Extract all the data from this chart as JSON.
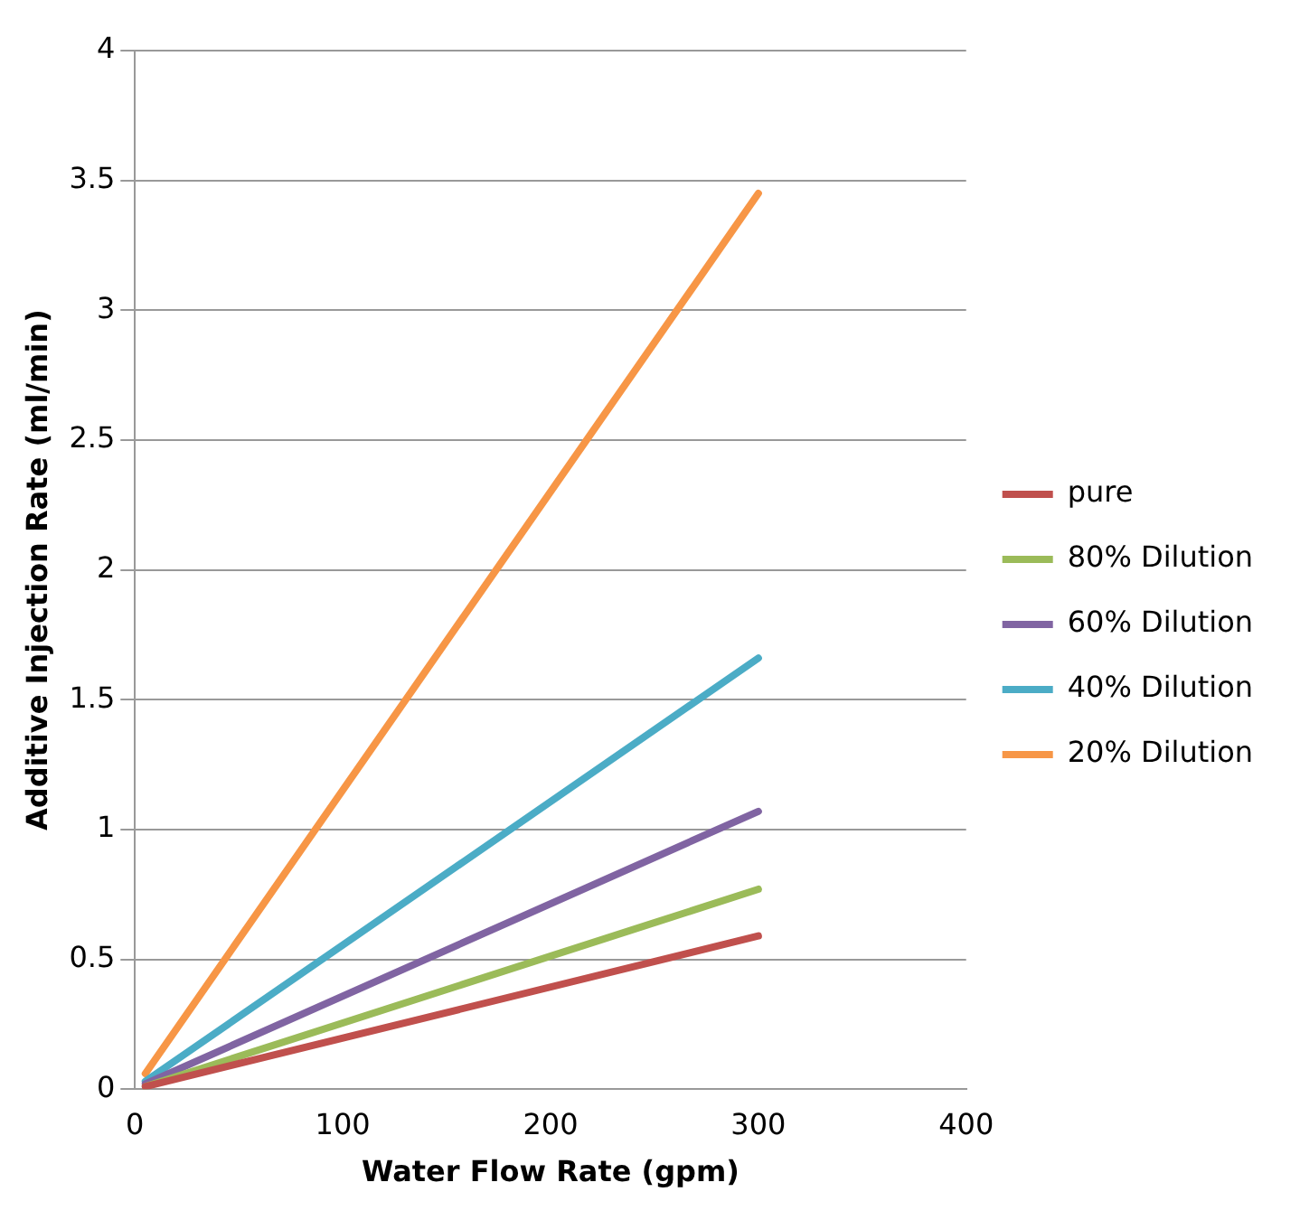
{
  "chart_data": {
    "type": "line",
    "xlabel": "Water Flow Rate (gpm)",
    "ylabel": "Additive Injection Rate (ml/min)",
    "x": [
      5,
      300
    ],
    "series": [
      {
        "name": "pure",
        "color": "#c0504d",
        "values": [
          0.01,
          0.59
        ]
      },
      {
        "name": "80% Dilution",
        "color": "#9bbb59",
        "values": [
          0.01,
          0.77
        ]
      },
      {
        "name": "60% Dilution",
        "color": "#8064a2",
        "values": [
          0.02,
          1.07
        ]
      },
      {
        "name": "40% Dilution",
        "color": "#4bacc6",
        "values": [
          0.03,
          1.66
        ]
      },
      {
        "name": "20% Dilution",
        "color": "#f79646",
        "values": [
          0.06,
          3.45
        ]
      }
    ],
    "xlim": [
      0,
      400
    ],
    "xticks": [
      0,
      100,
      200,
      300,
      400
    ],
    "ylim": [
      0,
      4
    ],
    "yticks": [
      0,
      0.5,
      1,
      1.5,
      2,
      2.5,
      3,
      3.5,
      4
    ],
    "grid": "y",
    "legend": "right",
    "marker": "none",
    "line_style": "solid"
  }
}
